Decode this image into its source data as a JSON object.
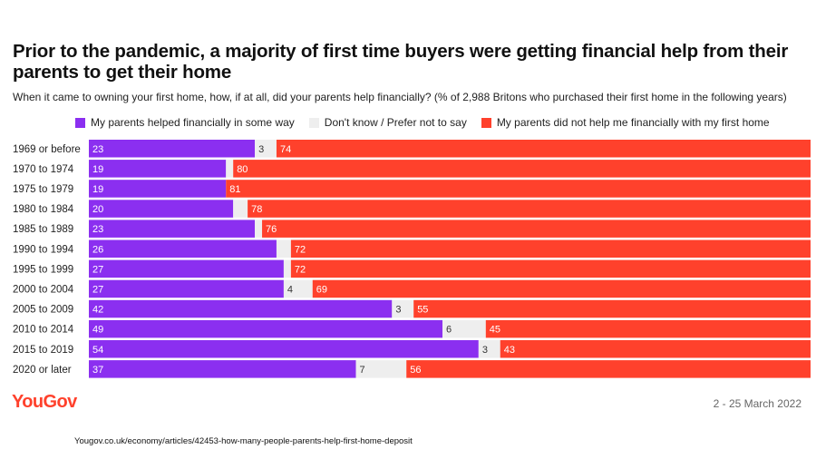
{
  "title": "Prior to the pandemic, a majority of first time buyers were getting financial help from their parents to get their home",
  "subtitle": "When it came to owning your first home, how, if at all, did your parents help financially? (% of 2,988 Britons who purchased their first home in the following years)",
  "legend": [
    {
      "label": "My parents helped financially in some way",
      "color": "#8b2ff0"
    },
    {
      "label": "Don't know / Prefer not to say",
      "color": "#eeeeee"
    },
    {
      "label": "My parents did not help me financially with my first home",
      "color": "#ff412c"
    }
  ],
  "chart_data": {
    "type": "bar",
    "orientation": "horizontal",
    "stacked": true,
    "categories": [
      "1969 or before",
      "1970 to 1974",
      "1975 to 1979",
      "1980 to 1984",
      "1985 to 1989",
      "1990 to 1994",
      "1995 to 1999",
      "2000 to 2004",
      "2005 to 2009",
      "2010 to 2014",
      "2015 to 2019",
      "2020 or later"
    ],
    "series": [
      {
        "name": "My parents helped financially in some way",
        "color": "#8b2ff0",
        "values": [
          23,
          19,
          19,
          20,
          23,
          26,
          27,
          27,
          42,
          49,
          54,
          37
        ]
      },
      {
        "name": "Don't know / Prefer not to say",
        "color": "#eeeeee",
        "values": [
          3,
          1,
          0,
          2,
          1,
          2,
          1,
          4,
          3,
          6,
          3,
          7
        ]
      },
      {
        "name": "My parents did not help me financially with my first home",
        "color": "#ff412c",
        "values": [
          74,
          80,
          81,
          78,
          76,
          72,
          72,
          69,
          55,
          45,
          43,
          56
        ]
      }
    ],
    "labels": [
      [
        "23",
        "3",
        "74"
      ],
      [
        "19",
        "",
        "80"
      ],
      [
        "19",
        "",
        "81"
      ],
      [
        "20",
        "",
        "78"
      ],
      [
        "23",
        "",
        "76"
      ],
      [
        "26",
        "",
        "72"
      ],
      [
        "27",
        "",
        "72"
      ],
      [
        "27",
        "4",
        "69"
      ],
      [
        "42",
        "3",
        "55"
      ],
      [
        "49",
        "6",
        "45"
      ],
      [
        "54",
        "3",
        "43"
      ],
      [
        "37",
        "7",
        "56"
      ]
    ],
    "xlim": [
      0,
      100
    ],
    "xlabel": "",
    "ylabel": ""
  },
  "footer": {
    "logo": "YouGov",
    "date": "2 - 25 March 2022",
    "source": "Yougov.co.uk/economy/articles/42453-how-many-people-parents-help-first-home-deposit"
  }
}
